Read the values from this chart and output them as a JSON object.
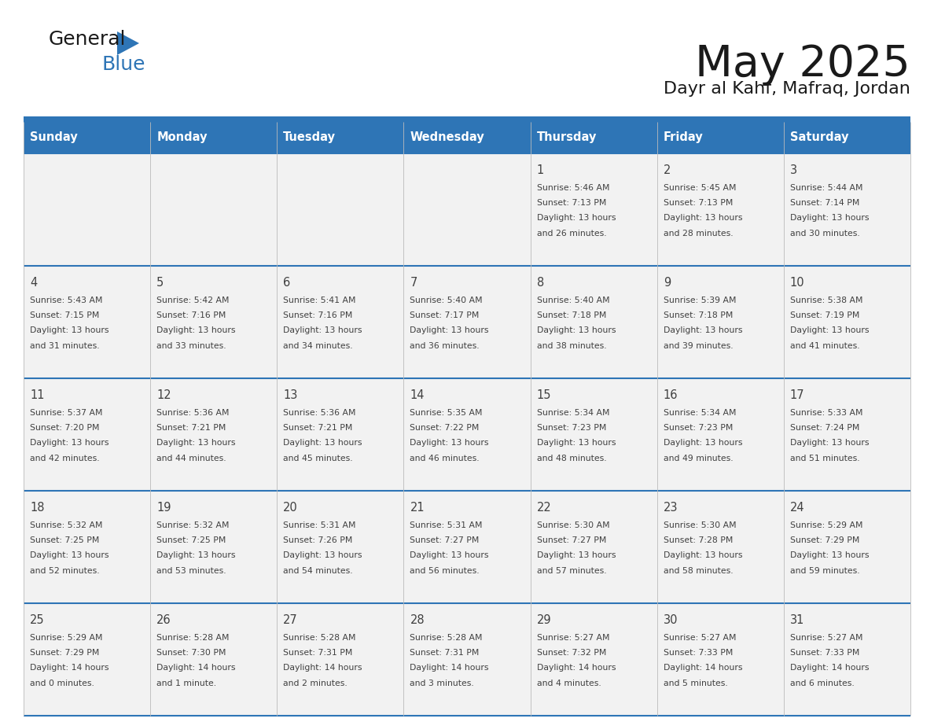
{
  "title": "May 2025",
  "subtitle": "Dayr al Kahf, Mafraq, Jordan",
  "days_of_week": [
    "Sunday",
    "Monday",
    "Tuesday",
    "Wednesday",
    "Thursday",
    "Friday",
    "Saturday"
  ],
  "header_bg": "#2E75B6",
  "header_text": "#FFFFFF",
  "cell_bg_odd": "#F2F2F2",
  "cell_bg_even": "#FFFFFF",
  "border_color": "#2E75B6",
  "text_color": "#404040",
  "logo_general_color": "#1A1A1A",
  "logo_blue_color": "#2E75B6",
  "logo_triangle_color": "#2E75B6",
  "calendar_data": [
    [
      "",
      "",
      "",
      "",
      "1\nSunrise: 5:46 AM\nSunset: 7:13 PM\nDaylight: 13 hours\nand 26 minutes.",
      "2\nSunrise: 5:45 AM\nSunset: 7:13 PM\nDaylight: 13 hours\nand 28 minutes.",
      "3\nSunrise: 5:44 AM\nSunset: 7:14 PM\nDaylight: 13 hours\nand 30 minutes."
    ],
    [
      "4\nSunrise: 5:43 AM\nSunset: 7:15 PM\nDaylight: 13 hours\nand 31 minutes.",
      "5\nSunrise: 5:42 AM\nSunset: 7:16 PM\nDaylight: 13 hours\nand 33 minutes.",
      "6\nSunrise: 5:41 AM\nSunset: 7:16 PM\nDaylight: 13 hours\nand 34 minutes.",
      "7\nSunrise: 5:40 AM\nSunset: 7:17 PM\nDaylight: 13 hours\nand 36 minutes.",
      "8\nSunrise: 5:40 AM\nSunset: 7:18 PM\nDaylight: 13 hours\nand 38 minutes.",
      "9\nSunrise: 5:39 AM\nSunset: 7:18 PM\nDaylight: 13 hours\nand 39 minutes.",
      "10\nSunrise: 5:38 AM\nSunset: 7:19 PM\nDaylight: 13 hours\nand 41 minutes."
    ],
    [
      "11\nSunrise: 5:37 AM\nSunset: 7:20 PM\nDaylight: 13 hours\nand 42 minutes.",
      "12\nSunrise: 5:36 AM\nSunset: 7:21 PM\nDaylight: 13 hours\nand 44 minutes.",
      "13\nSunrise: 5:36 AM\nSunset: 7:21 PM\nDaylight: 13 hours\nand 45 minutes.",
      "14\nSunrise: 5:35 AM\nSunset: 7:22 PM\nDaylight: 13 hours\nand 46 minutes.",
      "15\nSunrise: 5:34 AM\nSunset: 7:23 PM\nDaylight: 13 hours\nand 48 minutes.",
      "16\nSunrise: 5:34 AM\nSunset: 7:23 PM\nDaylight: 13 hours\nand 49 minutes.",
      "17\nSunrise: 5:33 AM\nSunset: 7:24 PM\nDaylight: 13 hours\nand 51 minutes."
    ],
    [
      "18\nSunrise: 5:32 AM\nSunset: 7:25 PM\nDaylight: 13 hours\nand 52 minutes.",
      "19\nSunrise: 5:32 AM\nSunset: 7:25 PM\nDaylight: 13 hours\nand 53 minutes.",
      "20\nSunrise: 5:31 AM\nSunset: 7:26 PM\nDaylight: 13 hours\nand 54 minutes.",
      "21\nSunrise: 5:31 AM\nSunset: 7:27 PM\nDaylight: 13 hours\nand 56 minutes.",
      "22\nSunrise: 5:30 AM\nSunset: 7:27 PM\nDaylight: 13 hours\nand 57 minutes.",
      "23\nSunrise: 5:30 AM\nSunset: 7:28 PM\nDaylight: 13 hours\nand 58 minutes.",
      "24\nSunrise: 5:29 AM\nSunset: 7:29 PM\nDaylight: 13 hours\nand 59 minutes."
    ],
    [
      "25\nSunrise: 5:29 AM\nSunset: 7:29 PM\nDaylight: 14 hours\nand 0 minutes.",
      "26\nSunrise: 5:28 AM\nSunset: 7:30 PM\nDaylight: 14 hours\nand 1 minute.",
      "27\nSunrise: 5:28 AM\nSunset: 7:31 PM\nDaylight: 14 hours\nand 2 minutes.",
      "28\nSunrise: 5:28 AM\nSunset: 7:31 PM\nDaylight: 14 hours\nand 3 minutes.",
      "29\nSunrise: 5:27 AM\nSunset: 7:32 PM\nDaylight: 14 hours\nand 4 minutes.",
      "30\nSunrise: 5:27 AM\nSunset: 7:33 PM\nDaylight: 14 hours\nand 5 minutes.",
      "31\nSunrise: 5:27 AM\nSunset: 7:33 PM\nDaylight: 14 hours\nand 6 minutes."
    ]
  ]
}
